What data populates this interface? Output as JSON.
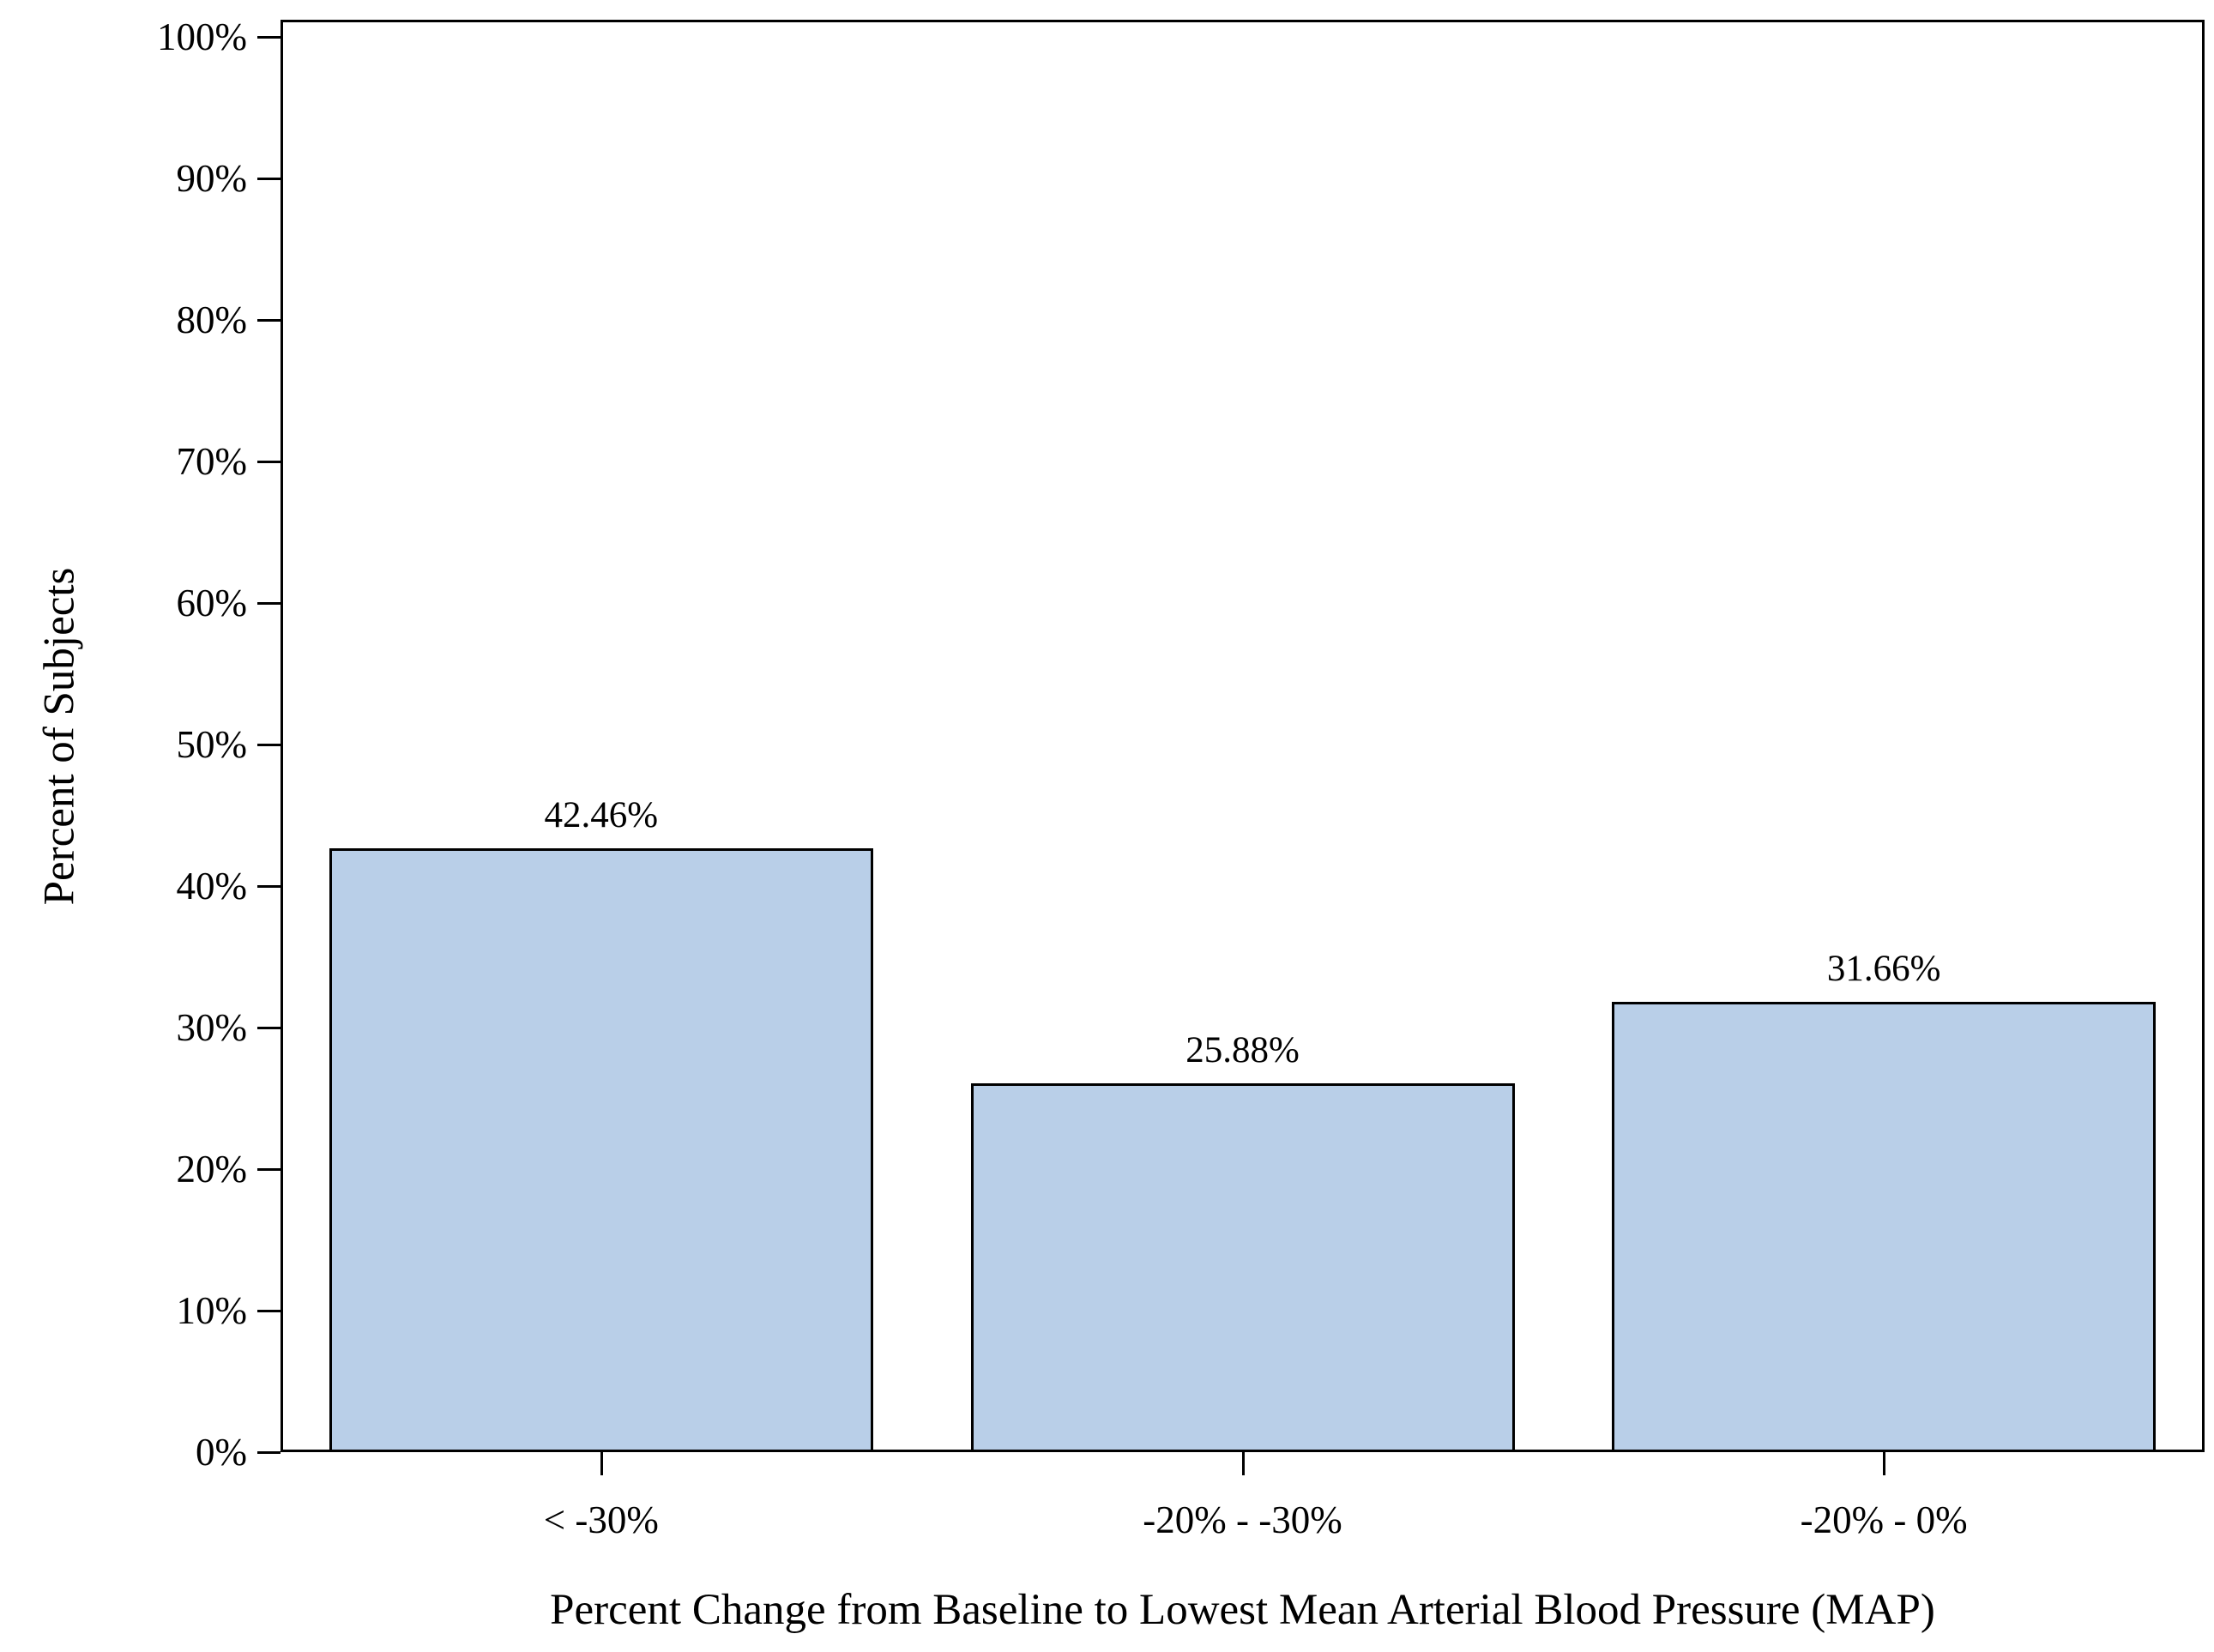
{
  "chart_data": {
    "type": "bar",
    "title": "",
    "categories": [
      "< -30%",
      "-20% - -30%",
      "-20% - 0%"
    ],
    "values": [
      42.46,
      25.88,
      31.66
    ],
    "bar_labels": [
      "42.46%",
      "25.88%",
      "31.66%"
    ],
    "xlabel": "Percent Change from Baseline to Lowest Mean Arterial Blood Pressure (MAP)",
    "ylabel": "Percent of Subjects",
    "ylim": [
      0,
      100
    ],
    "y_tick_values": [
      0,
      10,
      20,
      30,
      40,
      50,
      60,
      70,
      80,
      90,
      100
    ],
    "y_tick_labels": [
      "0%",
      "10%",
      "20%",
      "30%",
      "40%",
      "50%",
      "60%",
      "70%",
      "80%",
      "90%",
      "100%"
    ],
    "grid": false,
    "legend": "none",
    "colors": {
      "bar_fill": "#b9cfe8",
      "bar_border": "#000000",
      "axis_frame": "#000000",
      "text": "#000000",
      "background": "#ffffff"
    }
  }
}
